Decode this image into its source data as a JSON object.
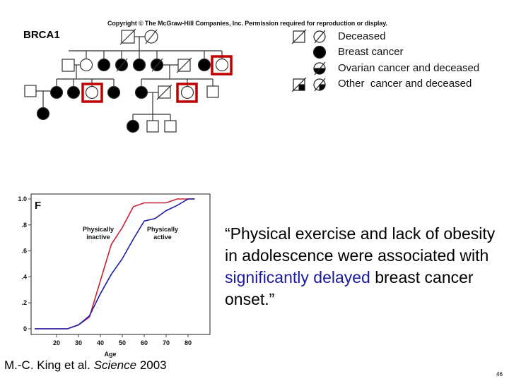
{
  "header": {
    "copyright": "Copyright © The McGraw-Hill Companies, Inc. Permission required for reproduction or display."
  },
  "pedigree": {
    "gene": "BRCA1",
    "highlight_color": "#c00000",
    "highlighted_individuals": [
      "generation-2-last-female",
      "generation-3-left-family-third-daughter",
      "generation-3-right-family-daughter"
    ]
  },
  "legend": {
    "items": [
      {
        "label": "Deceased",
        "symbols": [
          "square-slash",
          "circle-slash"
        ]
      },
      {
        "label": "Breast cancer",
        "symbols": [
          "filled-circle"
        ]
      },
      {
        "label": "Ovarian cancer and deceased",
        "symbols": [
          "half-filled-circle-slash"
        ]
      },
      {
        "label": "Other  cancer and deceased",
        "symbols": [
          "quarter-filled-square-slash",
          "quarter-filled-circle-slash"
        ]
      }
    ]
  },
  "chart_data": {
    "type": "line",
    "panel_label": "F",
    "title": "",
    "xlabel": "Age",
    "ylabel": "",
    "xlim": [
      10,
      88
    ],
    "ylim": [
      0,
      1.0
    ],
    "x_ticks": [
      "20",
      "30",
      "40",
      "50",
      "60",
      "70",
      "80"
    ],
    "y_ticks": [
      "0",
      ".2",
      ".4",
      ".6",
      ".8",
      "1.0"
    ],
    "grid": false,
    "series": [
      {
        "name": "Physically inactive",
        "color": "#c8203a",
        "points": [
          [
            10,
            0
          ],
          [
            25,
            0
          ],
          [
            30,
            0.03
          ],
          [
            35,
            0.09
          ],
          [
            40,
            0.37
          ],
          [
            45,
            0.65
          ],
          [
            50,
            0.78
          ],
          [
            55,
            0.94
          ],
          [
            60,
            0.97
          ],
          [
            70,
            0.97
          ],
          [
            75,
            1.0
          ],
          [
            83,
            1.0
          ]
        ]
      },
      {
        "name": "Physically active",
        "color": "#1c1ca8",
        "points": [
          [
            10,
            0
          ],
          [
            25,
            0
          ],
          [
            30,
            0.03
          ],
          [
            35,
            0.1
          ],
          [
            40,
            0.27
          ],
          [
            45,
            0.42
          ],
          [
            50,
            0.54
          ],
          [
            55,
            0.69
          ],
          [
            60,
            0.83
          ],
          [
            65,
            0.85
          ],
          [
            70,
            0.91
          ],
          [
            75,
            0.95
          ],
          [
            80,
            1.0
          ],
          [
            83,
            1.0
          ]
        ]
      }
    ],
    "annotations": [
      {
        "text_line1": "Physically",
        "text_line2": "inactive"
      },
      {
        "text_line1": "Physically",
        "text_line2": "active"
      }
    ]
  },
  "quote": {
    "part1": "“Physical exercise and lack of obesity in adolescence were associated with ",
    "highlight": "significantly delayed",
    "part2": " breast cancer onset.”",
    "highlight_color": "#1a1aa0"
  },
  "citation": {
    "authors": "M.-C. King et al. ",
    "journal": "Science",
    "year": " 2003"
  },
  "page_number": "46"
}
